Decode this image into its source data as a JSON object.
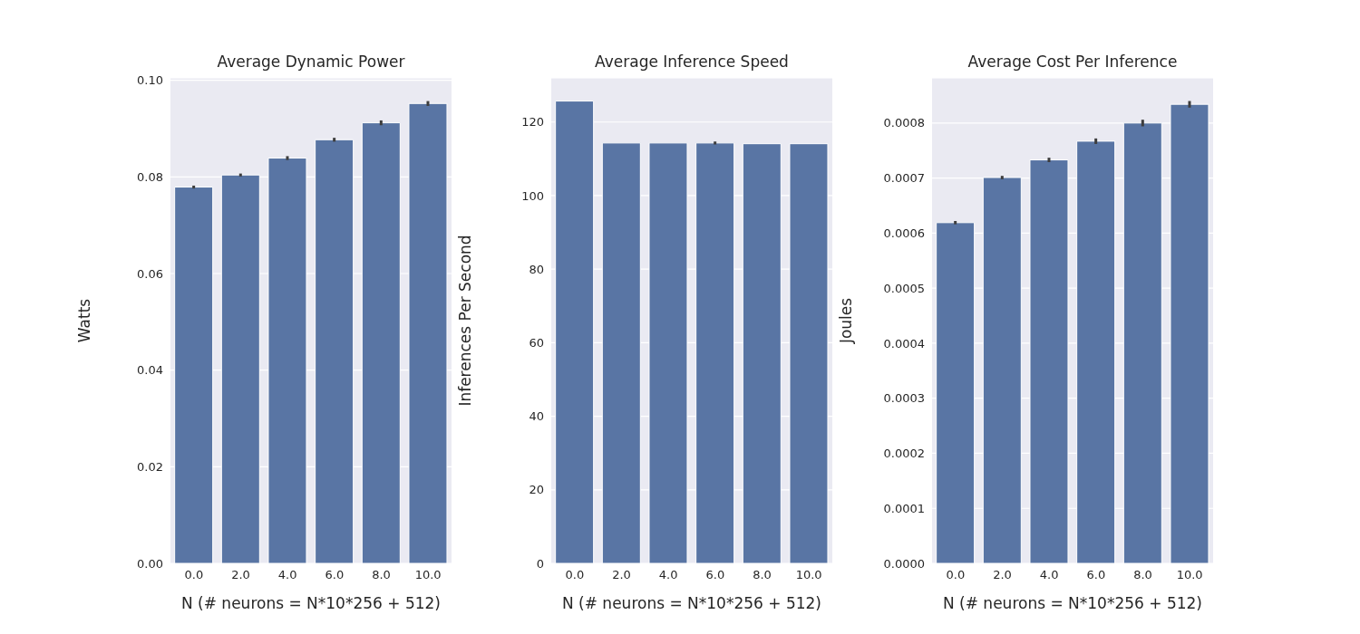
{
  "chart_data": [
    {
      "type": "bar",
      "title": "Average Dynamic Power",
      "xlabel": "N (# neurons = N*10*256 + 512)",
      "ylabel": "Watts",
      "categories": [
        "0.0",
        "2.0",
        "4.0",
        "6.0",
        "8.0",
        "10.0"
      ],
      "series": [
        {
          "color": "#5975a4",
          "values": [
            0.0779,
            0.0804,
            0.0839,
            0.0877,
            0.0912,
            0.0952
          ],
          "errors": [
            0.0003,
            0.0003,
            0.0004,
            0.0004,
            0.0005,
            0.0005
          ]
        }
      ],
      "ylim": [
        0,
        0.1005
      ],
      "yticks": [
        {
          "value": 0,
          "label": "0.00"
        },
        {
          "value": 0.02,
          "label": "0.02"
        },
        {
          "value": 0.04,
          "label": "0.04"
        },
        {
          "value": 0.06,
          "label": "0.06"
        },
        {
          "value": 0.08,
          "label": "0.08"
        },
        {
          "value": 0.1,
          "label": "0.10"
        }
      ],
      "grid": "y",
      "legend": false
    },
    {
      "type": "bar",
      "title": "Average Inference Speed",
      "xlabel": "N (# neurons = N*10*256 + 512)",
      "ylabel": "Inferences Per Second",
      "categories": [
        "0.0",
        "2.0",
        "4.0",
        "6.0",
        "8.0",
        "10.0"
      ],
      "series": [
        {
          "color": "#5975a4",
          "values": [
            125.7,
            114.3,
            114.3,
            114.3,
            114.1,
            114.1
          ],
          "errors": [
            null,
            null,
            null,
            0.4,
            null,
            null
          ]
        }
      ],
      "ylim": [
        0,
        132
      ],
      "yticks": [
        0,
        20,
        40,
        60,
        80,
        100,
        120
      ],
      "grid": "y",
      "legend": false
    },
    {
      "type": "bar",
      "title": "Average Cost Per Inference",
      "xlabel": "N (# neurons = N*10*256 + 512)",
      "ylabel": "Joules",
      "categories": [
        "0.0",
        "2.0",
        "4.0",
        "6.0",
        "8.0",
        "10.0"
      ],
      "series": [
        {
          "color": "#5975a4",
          "values": [
            0.000619,
            0.000701,
            0.000733,
            0.000767,
            0.0008,
            0.000834
          ],
          "errors": [
            3e-06,
            3e-06,
            4e-06,
            5e-06,
            6e-06,
            6e-06
          ]
        }
      ],
      "ylim": [
        0,
        0.000882
      ],
      "yticks": [
        {
          "value": 0,
          "label": "0.0000"
        },
        {
          "value": 0.0001,
          "label": "0.0001"
        },
        {
          "value": 0.0002,
          "label": "0.0002"
        },
        {
          "value": 0.0003,
          "label": "0.0003"
        },
        {
          "value": 0.0004,
          "label": "0.0004"
        },
        {
          "value": 0.0005,
          "label": "0.0005"
        },
        {
          "value": 0.0006,
          "label": "0.0006"
        },
        {
          "value": 0.0007,
          "label": "0.0007"
        },
        {
          "value": 0.0008,
          "label": "0.0008"
        }
      ],
      "grid": "y",
      "legend": false
    }
  ]
}
